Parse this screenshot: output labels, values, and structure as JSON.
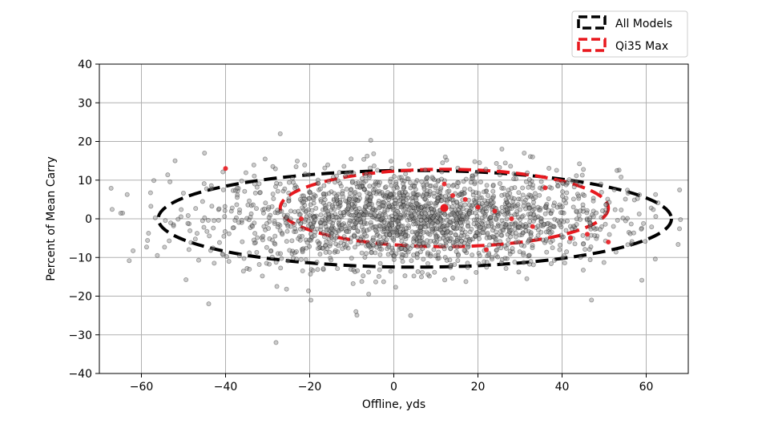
{
  "chart_data": {
    "type": "scatter",
    "title": "",
    "xlabel": "Offline, yds",
    "ylabel": "Percent of Mean Carry",
    "xlim": [
      -70,
      70
    ],
    "ylim": [
      -40,
      40
    ],
    "xticks": [
      -60,
      -40,
      -20,
      0,
      20,
      40,
      60
    ],
    "yticks": [
      -40,
      -30,
      -20,
      -10,
      0,
      10,
      20,
      30,
      40
    ],
    "xtick_labels": [
      "−60",
      "−40",
      "−20",
      "0",
      "20",
      "40",
      "60"
    ],
    "ytick_labels": [
      "−40",
      "−30",
      "−20",
      "−10",
      "0",
      "10",
      "20",
      "30",
      "40"
    ],
    "grid": true,
    "legend_position": "top-right-outside",
    "legend": [
      {
        "label": "All Models",
        "color": "#000000"
      },
      {
        "label": "Qi35 Max",
        "color": "#e8191f"
      }
    ],
    "ellipses": [
      {
        "name": "All Models",
        "color": "#000000",
        "center": [
          5,
          0
        ],
        "x_semi_axis": 61,
        "y_semi_axis": 12.5
      },
      {
        "name": "Qi35 Max",
        "color": "#e8191f",
        "center": [
          12,
          2.8
        ],
        "x_semi_axis": 39,
        "y_semi_axis": 10
      }
    ],
    "series": [
      {
        "color": "#000000",
        "count": 2000,
        "x_mean": 5,
        "x_sd": 24,
        "y_mean": 0,
        "y_sd": 6.2,
        "x_range": [
          -70,
          70
        ],
        "y_range": [
          -33,
          23
        ]
      },
      {
        "color": "#e8191f",
        "points": [
          [
            -40,
            13
          ],
          [
            12,
            9
          ],
          [
            14,
            6
          ],
          [
            20,
            3
          ],
          [
            24,
            2
          ],
          [
            28,
            0
          ],
          [
            33,
            -2
          ],
          [
            42,
            -5
          ],
          [
            51,
            -6
          ],
          [
            22,
            -8
          ],
          [
            12,
            3
          ],
          [
            17,
            5
          ],
          [
            -22,
            0
          ],
          [
            46,
            -4
          ],
          [
            36,
            8
          ]
        ]
      }
    ],
    "highlight_point": {
      "color": "#e8191f",
      "x": 12,
      "y": 2.8
    }
  }
}
